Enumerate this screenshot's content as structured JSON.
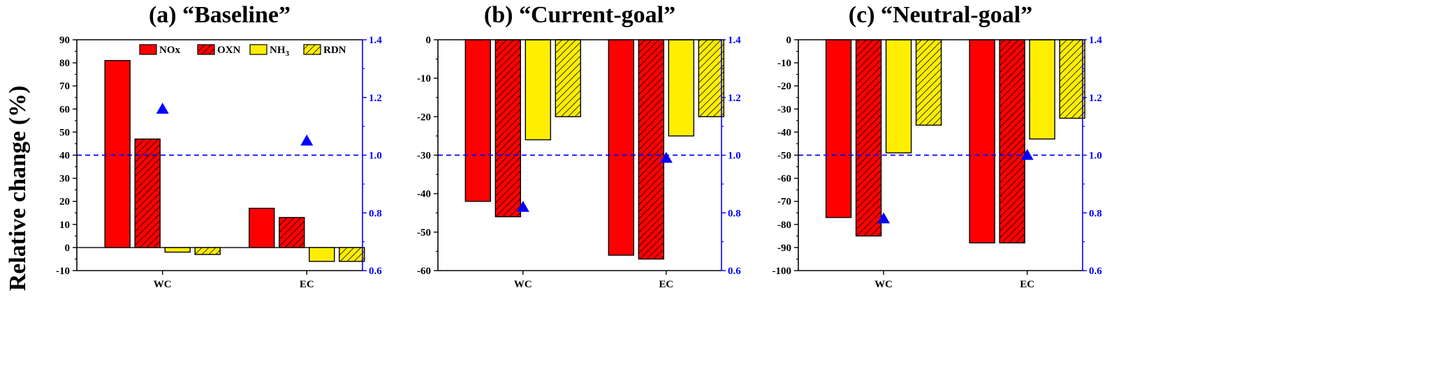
{
  "ylabel": "Relative change (%)",
  "colors": {
    "NOx": "#ff0000",
    "OXN": "#ff0000",
    "NH3": "#ffee00",
    "RDN": "#ffee00",
    "ratio_marker": "#0000ff",
    "reference_line": "#0000ff"
  },
  "legend": {
    "placement": "top-right of panel (a)",
    "entries": [
      {
        "key": "NOx",
        "label": "NOx",
        "hatched": false
      },
      {
        "key": "OXN",
        "label": "OXN",
        "hatched": true
      },
      {
        "key": "NH3",
        "label": "NH",
        "sub": "3",
        "hatched": false
      },
      {
        "key": "RDN",
        "label": "RDN",
        "hatched": true
      }
    ]
  },
  "chart_data": [
    {
      "type": "bar",
      "title": "(a) “Baseline”",
      "categories": [
        "WC",
        "EC"
      ],
      "series": [
        {
          "name": "NOx",
          "values": [
            81,
            17
          ]
        },
        {
          "name": "OXN",
          "values": [
            47,
            13
          ]
        },
        {
          "name": "NH3",
          "values": [
            -2,
            -6
          ]
        },
        {
          "name": "RDN",
          "values": [
            -3,
            -6
          ]
        }
      ],
      "ylim": [
        -10,
        90
      ],
      "yticks": [
        -10,
        0,
        10,
        20,
        30,
        40,
        50,
        60,
        70,
        80,
        90
      ],
      "ylim_right": [
        0.6,
        1.4
      ],
      "yticks_right": [
        0.6,
        0.8,
        1.0,
        1.2,
        1.4
      ],
      "markers_right": [
        1.16,
        1.05
      ],
      "reference_right": 1.0
    },
    {
      "type": "bar",
      "title": "(b) “Current-goal”",
      "categories": [
        "WC",
        "EC"
      ],
      "series": [
        {
          "name": "NOx",
          "values": [
            -42,
            -56
          ]
        },
        {
          "name": "OXN",
          "values": [
            -46,
            -57
          ]
        },
        {
          "name": "NH3",
          "values": [
            -26,
            -25
          ]
        },
        {
          "name": "RDN",
          "values": [
            -20,
            -20
          ]
        }
      ],
      "ylim": [
        -60,
        0
      ],
      "yticks": [
        -60,
        -50,
        -40,
        -30,
        -20,
        -10,
        0
      ],
      "ylim_right": [
        0.6,
        1.4
      ],
      "yticks_right": [
        0.6,
        0.8,
        1.0,
        1.2,
        1.4
      ],
      "markers_right": [
        0.82,
        0.99
      ],
      "reference_right": 1.0
    },
    {
      "type": "bar",
      "title": "(c) “Neutral-goal”",
      "categories": [
        "WC",
        "EC"
      ],
      "series": [
        {
          "name": "NOx",
          "values": [
            -77,
            -88
          ]
        },
        {
          "name": "OXN",
          "values": [
            -85,
            -88
          ]
        },
        {
          "name": "NH3",
          "values": [
            -49,
            -43
          ]
        },
        {
          "name": "RDN",
          "values": [
            -37,
            -34
          ]
        }
      ],
      "ylim": [
        -100,
        0
      ],
      "yticks": [
        -100,
        -90,
        -80,
        -70,
        -60,
        -50,
        -40,
        -30,
        -20,
        -10,
        0
      ],
      "ylim_right": [
        0.6,
        1.4
      ],
      "yticks_right": [
        0.6,
        0.8,
        1.0,
        1.2,
        1.4
      ],
      "markers_right": [
        0.78,
        1.0
      ],
      "reference_right": 1.0
    }
  ]
}
